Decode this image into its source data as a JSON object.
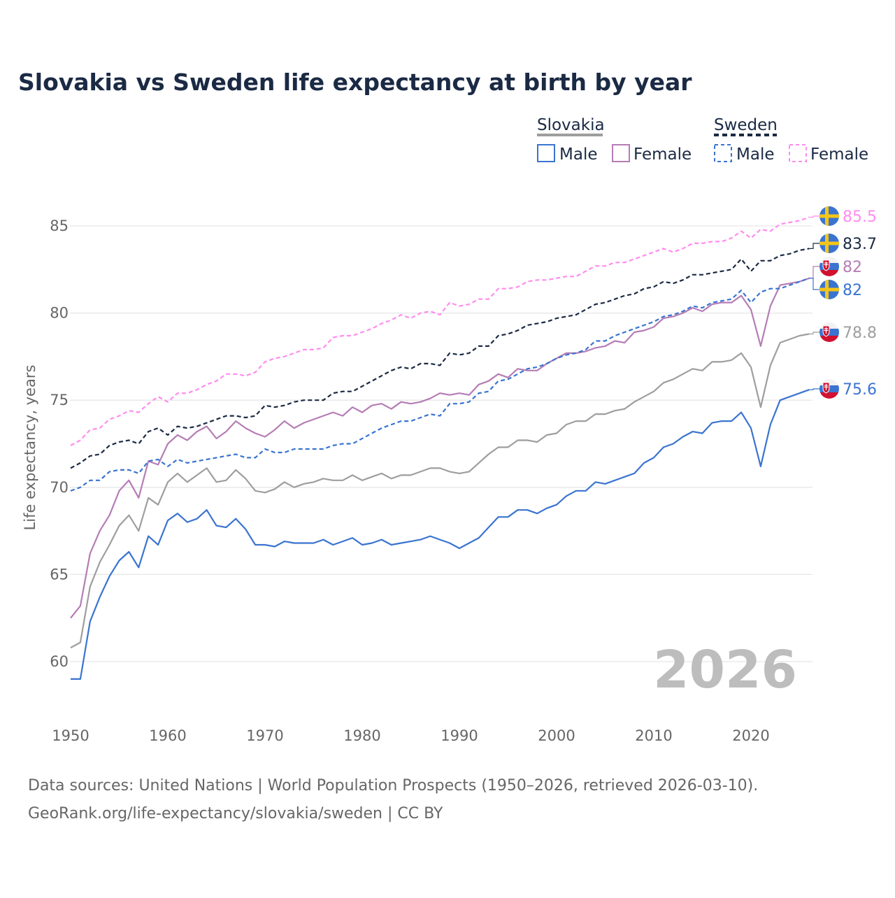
{
  "title": "Slovakia vs Sweden life expectancy at birth by year",
  "legend": {
    "groups": [
      {
        "name": "Slovakia",
        "color": "#9e9e9e",
        "dashed": false,
        "items": [
          {
            "label": "Male",
            "color": "#3a74d0"
          },
          {
            "label": "Female",
            "color": "#b57db5"
          }
        ]
      },
      {
        "name": "Sweden",
        "color": "#1b2a44",
        "dashed": true,
        "items": [
          {
            "label": "Male",
            "color": "#3a74d0"
          },
          {
            "label": "Female",
            "color": "#ff8cf0"
          }
        ]
      }
    ]
  },
  "year_watermark": "2026",
  "sources": {
    "line1": "Data sources: United Nations | World Population Prospects (1950–2026, retrieved 2026-03-10).",
    "line2": "GeoRank.org/life-expectancy/slovakia/sweden | CC BY"
  },
  "chart_data": {
    "type": "line",
    "title": "Slovakia vs Sweden life expectancy at birth by year",
    "xlabel": "",
    "ylabel": "Life expectancy, years",
    "xlim": [
      1950,
      2026
    ],
    "ylim": [
      58,
      87
    ],
    "xticks": [
      "1950",
      "1960",
      "1970",
      "1980",
      "1990",
      "2000",
      "2010",
      "2020"
    ],
    "yticks": [
      "60",
      "65",
      "70",
      "75",
      "80",
      "85"
    ],
    "grid": true,
    "legend_position": "top-right",
    "x_start": 1950,
    "series": [
      {
        "name": "Sweden Female",
        "country": "Sweden",
        "color": "#ff8cf0",
        "dashed": true,
        "end_label": "85.5",
        "flag": "sweden",
        "values": [
          72.4,
          72.7,
          73.3,
          73.4,
          73.9,
          74.1,
          74.4,
          74.3,
          74.8,
          75.2,
          74.9,
          75.4,
          75.4,
          75.6,
          75.9,
          76.1,
          76.5,
          76.5,
          76.4,
          76.6,
          77.2,
          77.4,
          77.5,
          77.7,
          77.9,
          77.9,
          78.0,
          78.6,
          78.7,
          78.7,
          78.9,
          79.1,
          79.4,
          79.6,
          79.9,
          79.7,
          80.0,
          80.1,
          79.9,
          80.6,
          80.4,
          80.5,
          80.8,
          80.8,
          81.4,
          81.4,
          81.5,
          81.8,
          81.9,
          81.9,
          82.0,
          82.1,
          82.1,
          82.4,
          82.7,
          82.7,
          82.9,
          82.9,
          83.1,
          83.3,
          83.5,
          83.7,
          83.5,
          83.7,
          84.0,
          84.0,
          84.1,
          84.1,
          84.3,
          84.7,
          84.3,
          84.8,
          84.7,
          85.1,
          85.2,
          85.3,
          85.5
        ]
      },
      {
        "name": "Sweden",
        "country": "Sweden",
        "color": "#1b2a44",
        "dashed": true,
        "end_label": "83.7",
        "flag": "sweden",
        "values": [
          71.1,
          71.4,
          71.8,
          71.9,
          72.4,
          72.6,
          72.7,
          72.5,
          73.2,
          73.4,
          73.0,
          73.5,
          73.4,
          73.5,
          73.7,
          73.9,
          74.1,
          74.1,
          74.0,
          74.1,
          74.7,
          74.6,
          74.7,
          74.9,
          75.0,
          75.0,
          75.0,
          75.4,
          75.5,
          75.5,
          75.8,
          76.1,
          76.4,
          76.7,
          76.9,
          76.8,
          77.1,
          77.1,
          77.0,
          77.7,
          77.6,
          77.7,
          78.1,
          78.1,
          78.7,
          78.8,
          79.0,
          79.3,
          79.4,
          79.5,
          79.7,
          79.8,
          79.9,
          80.2,
          80.5,
          80.6,
          80.8,
          81.0,
          81.1,
          81.4,
          81.5,
          81.8,
          81.7,
          81.9,
          82.2,
          82.2,
          82.3,
          82.4,
          82.5,
          83.1,
          82.4,
          83.0,
          83.0,
          83.3,
          83.4,
          83.6,
          83.7
        ]
      },
      {
        "name": "Slovakia Female",
        "country": "Slovakia",
        "color": "#b57db5",
        "dashed": false,
        "end_label": "82",
        "flag": "slovakia",
        "values": [
          62.5,
          63.2,
          66.2,
          67.5,
          68.4,
          69.8,
          70.4,
          69.4,
          71.5,
          71.3,
          72.5,
          73.0,
          72.7,
          73.2,
          73.5,
          72.8,
          73.2,
          73.8,
          73.4,
          73.1,
          72.9,
          73.3,
          73.8,
          73.4,
          73.7,
          73.9,
          74.1,
          74.3,
          74.1,
          74.6,
          74.3,
          74.7,
          74.8,
          74.5,
          74.9,
          74.8,
          74.9,
          75.1,
          75.4,
          75.3,
          75.4,
          75.3,
          75.9,
          76.1,
          76.5,
          76.3,
          76.8,
          76.7,
          76.7,
          77.1,
          77.4,
          77.7,
          77.7,
          77.8,
          78.0,
          78.1,
          78.4,
          78.3,
          78.9,
          79.0,
          79.2,
          79.7,
          79.8,
          80.0,
          80.3,
          80.1,
          80.5,
          80.6,
          80.6,
          81.0,
          80.2,
          78.1,
          80.4,
          81.6,
          81.7,
          81.8,
          82.0
        ]
      },
      {
        "name": "Sweden Male",
        "country": "Sweden",
        "color": "#3a74d0",
        "dashed": true,
        "end_label": "82",
        "flag": "sweden",
        "values": [
          69.8,
          70.0,
          70.4,
          70.4,
          70.9,
          71.0,
          71.0,
          70.8,
          71.5,
          71.6,
          71.2,
          71.6,
          71.4,
          71.5,
          71.6,
          71.7,
          71.8,
          71.9,
          71.7,
          71.7,
          72.2,
          72.0,
          72.0,
          72.2,
          72.2,
          72.2,
          72.2,
          72.4,
          72.5,
          72.5,
          72.8,
          73.1,
          73.4,
          73.6,
          73.8,
          73.8,
          74.0,
          74.2,
          74.1,
          74.8,
          74.8,
          74.9,
          75.4,
          75.5,
          76.1,
          76.2,
          76.5,
          76.8,
          76.9,
          77.1,
          77.4,
          77.6,
          77.7,
          77.9,
          78.4,
          78.4,
          78.7,
          78.9,
          79.1,
          79.3,
          79.5,
          79.8,
          79.9,
          80.1,
          80.4,
          80.3,
          80.6,
          80.7,
          80.8,
          81.3,
          80.6,
          81.2,
          81.4,
          81.4,
          81.6,
          81.8,
          82.0
        ]
      },
      {
        "name": "Slovakia",
        "country": "Slovakia",
        "color": "#9e9e9e",
        "dashed": false,
        "end_label": "78.8",
        "flag": "slovakia",
        "values": [
          60.8,
          61.1,
          64.3,
          65.7,
          66.7,
          67.8,
          68.4,
          67.5,
          69.4,
          69.0,
          70.3,
          70.8,
          70.3,
          70.7,
          71.1,
          70.3,
          70.4,
          71.0,
          70.5,
          69.8,
          69.7,
          69.9,
          70.3,
          70.0,
          70.2,
          70.3,
          70.5,
          70.4,
          70.4,
          70.7,
          70.4,
          70.6,
          70.8,
          70.5,
          70.7,
          70.7,
          70.9,
          71.1,
          71.1,
          70.9,
          70.8,
          70.9,
          71.4,
          71.9,
          72.3,
          72.3,
          72.7,
          72.7,
          72.6,
          73.0,
          73.1,
          73.6,
          73.8,
          73.8,
          74.2,
          74.2,
          74.4,
          74.5,
          74.9,
          75.2,
          75.5,
          76.0,
          76.2,
          76.5,
          76.8,
          76.7,
          77.2,
          77.2,
          77.3,
          77.7,
          76.9,
          74.6,
          77.0,
          78.3,
          78.5,
          78.7,
          78.8
        ]
      },
      {
        "name": "Slovakia Male",
        "country": "Slovakia",
        "color": "#3a74d0",
        "dashed": false,
        "end_label": "75.6",
        "flag": "slovakia",
        "values": [
          59.0,
          59.0,
          62.3,
          63.7,
          64.9,
          65.8,
          66.3,
          65.4,
          67.2,
          66.7,
          68.1,
          68.5,
          68.0,
          68.2,
          68.7,
          67.8,
          67.7,
          68.2,
          67.6,
          66.7,
          66.7,
          66.6,
          66.9,
          66.8,
          66.8,
          66.8,
          67.0,
          66.7,
          66.9,
          67.1,
          66.7,
          66.8,
          67.0,
          66.7,
          66.8,
          66.9,
          67.0,
          67.2,
          67.0,
          66.8,
          66.5,
          66.8,
          67.1,
          67.7,
          68.3,
          68.3,
          68.7,
          68.7,
          68.5,
          68.8,
          69.0,
          69.5,
          69.8,
          69.8,
          70.3,
          70.2,
          70.4,
          70.6,
          70.8,
          71.4,
          71.7,
          72.3,
          72.5,
          72.9,
          73.2,
          73.1,
          73.7,
          73.8,
          73.8,
          74.3,
          73.4,
          71.2,
          73.6,
          75.0,
          75.2,
          75.4,
          75.6
        ]
      }
    ]
  }
}
